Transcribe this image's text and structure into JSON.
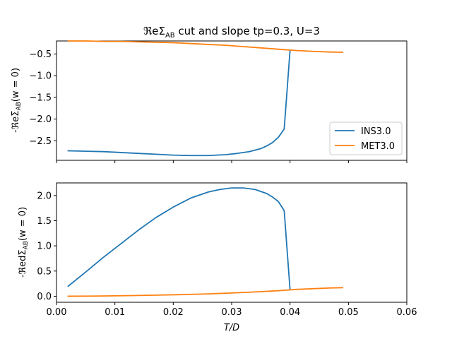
{
  "figure": {
    "title_main": "ℜeΣ",
    "title_sub": "AB",
    "title_rest": " cut and slope tp=0.3, U=3"
  },
  "colors": {
    "ins": "#1f77b4",
    "met": "#ff7f0e"
  },
  "chart_data": [
    {
      "type": "line",
      "ylabel": "-ℜeΣAB(w = 0)",
      "xlim": [
        0.0,
        0.06
      ],
      "ylim": [
        -2.95,
        -0.2
      ],
      "y_ticks": [
        -2.5,
        -2.0,
        -1.5,
        -1.0,
        -0.5
      ],
      "y_tick_labels": [
        "−2.5",
        "−2.0",
        "−1.5",
        "−1.0",
        "−0.5"
      ],
      "legend": "lower right",
      "series": [
        {
          "name": "INS3.0",
          "color": "#1f77b4",
          "x": [
            0.002,
            0.005,
            0.008,
            0.011,
            0.014,
            0.017,
            0.02,
            0.023,
            0.026,
            0.029,
            0.031,
            0.033,
            0.035,
            0.036,
            0.037,
            0.038,
            0.039,
            0.04
          ],
          "y": [
            -2.73,
            -2.74,
            -2.75,
            -2.77,
            -2.79,
            -2.81,
            -2.83,
            -2.84,
            -2.84,
            -2.82,
            -2.79,
            -2.75,
            -2.68,
            -2.62,
            -2.54,
            -2.42,
            -2.23,
            -0.42
          ]
        },
        {
          "name": "MET3.0",
          "color": "#ff7f0e",
          "x": [
            0.002,
            0.005,
            0.008,
            0.011,
            0.014,
            0.017,
            0.02,
            0.023,
            0.026,
            0.029,
            0.032,
            0.035,
            0.038,
            0.041,
            0.044,
            0.047,
            0.049
          ],
          "y": [
            -0.2,
            -0.2,
            -0.21,
            -0.21,
            -0.22,
            -0.23,
            -0.24,
            -0.26,
            -0.28,
            -0.3,
            -0.33,
            -0.36,
            -0.39,
            -0.42,
            -0.44,
            -0.455,
            -0.46
          ]
        }
      ]
    },
    {
      "type": "line",
      "xlabel": "T/D",
      "ylabel": "-ℜedΣAB(w = 0)",
      "xlim": [
        0.0,
        0.06
      ],
      "ylim": [
        -0.12,
        2.25
      ],
      "x_ticks": [
        0.0,
        0.01,
        0.02,
        0.03,
        0.04,
        0.05,
        0.06
      ],
      "x_tick_labels": [
        "0.00",
        "0.01",
        "0.02",
        "0.03",
        "0.04",
        "0.05",
        "0.06"
      ],
      "y_ticks": [
        0.0,
        0.5,
        1.0,
        1.5,
        2.0
      ],
      "y_tick_labels": [
        "0.0",
        "0.5",
        "1.0",
        "1.5",
        "2.0"
      ],
      "series": [
        {
          "name": "INS3.0",
          "color": "#1f77b4",
          "x": [
            0.002,
            0.005,
            0.008,
            0.011,
            0.014,
            0.017,
            0.02,
            0.023,
            0.026,
            0.028,
            0.03,
            0.031,
            0.032,
            0.034,
            0.036,
            0.037,
            0.038,
            0.039,
            0.04
          ],
          "y": [
            0.2,
            0.48,
            0.77,
            1.04,
            1.31,
            1.56,
            1.77,
            1.95,
            2.07,
            2.12,
            2.15,
            2.15,
            2.15,
            2.12,
            2.04,
            1.97,
            1.88,
            1.7,
            0.13
          ]
        },
        {
          "name": "MET3.0",
          "color": "#ff7f0e",
          "x": [
            0.002,
            0.006,
            0.01,
            0.014,
            0.018,
            0.022,
            0.026,
            0.03,
            0.034,
            0.038,
            0.041,
            0.044,
            0.047,
            0.049
          ],
          "y": [
            0.0,
            0.003,
            0.008,
            0.015,
            0.024,
            0.034,
            0.047,
            0.064,
            0.085,
            0.11,
            0.135,
            0.15,
            0.165,
            0.17
          ]
        }
      ]
    }
  ]
}
